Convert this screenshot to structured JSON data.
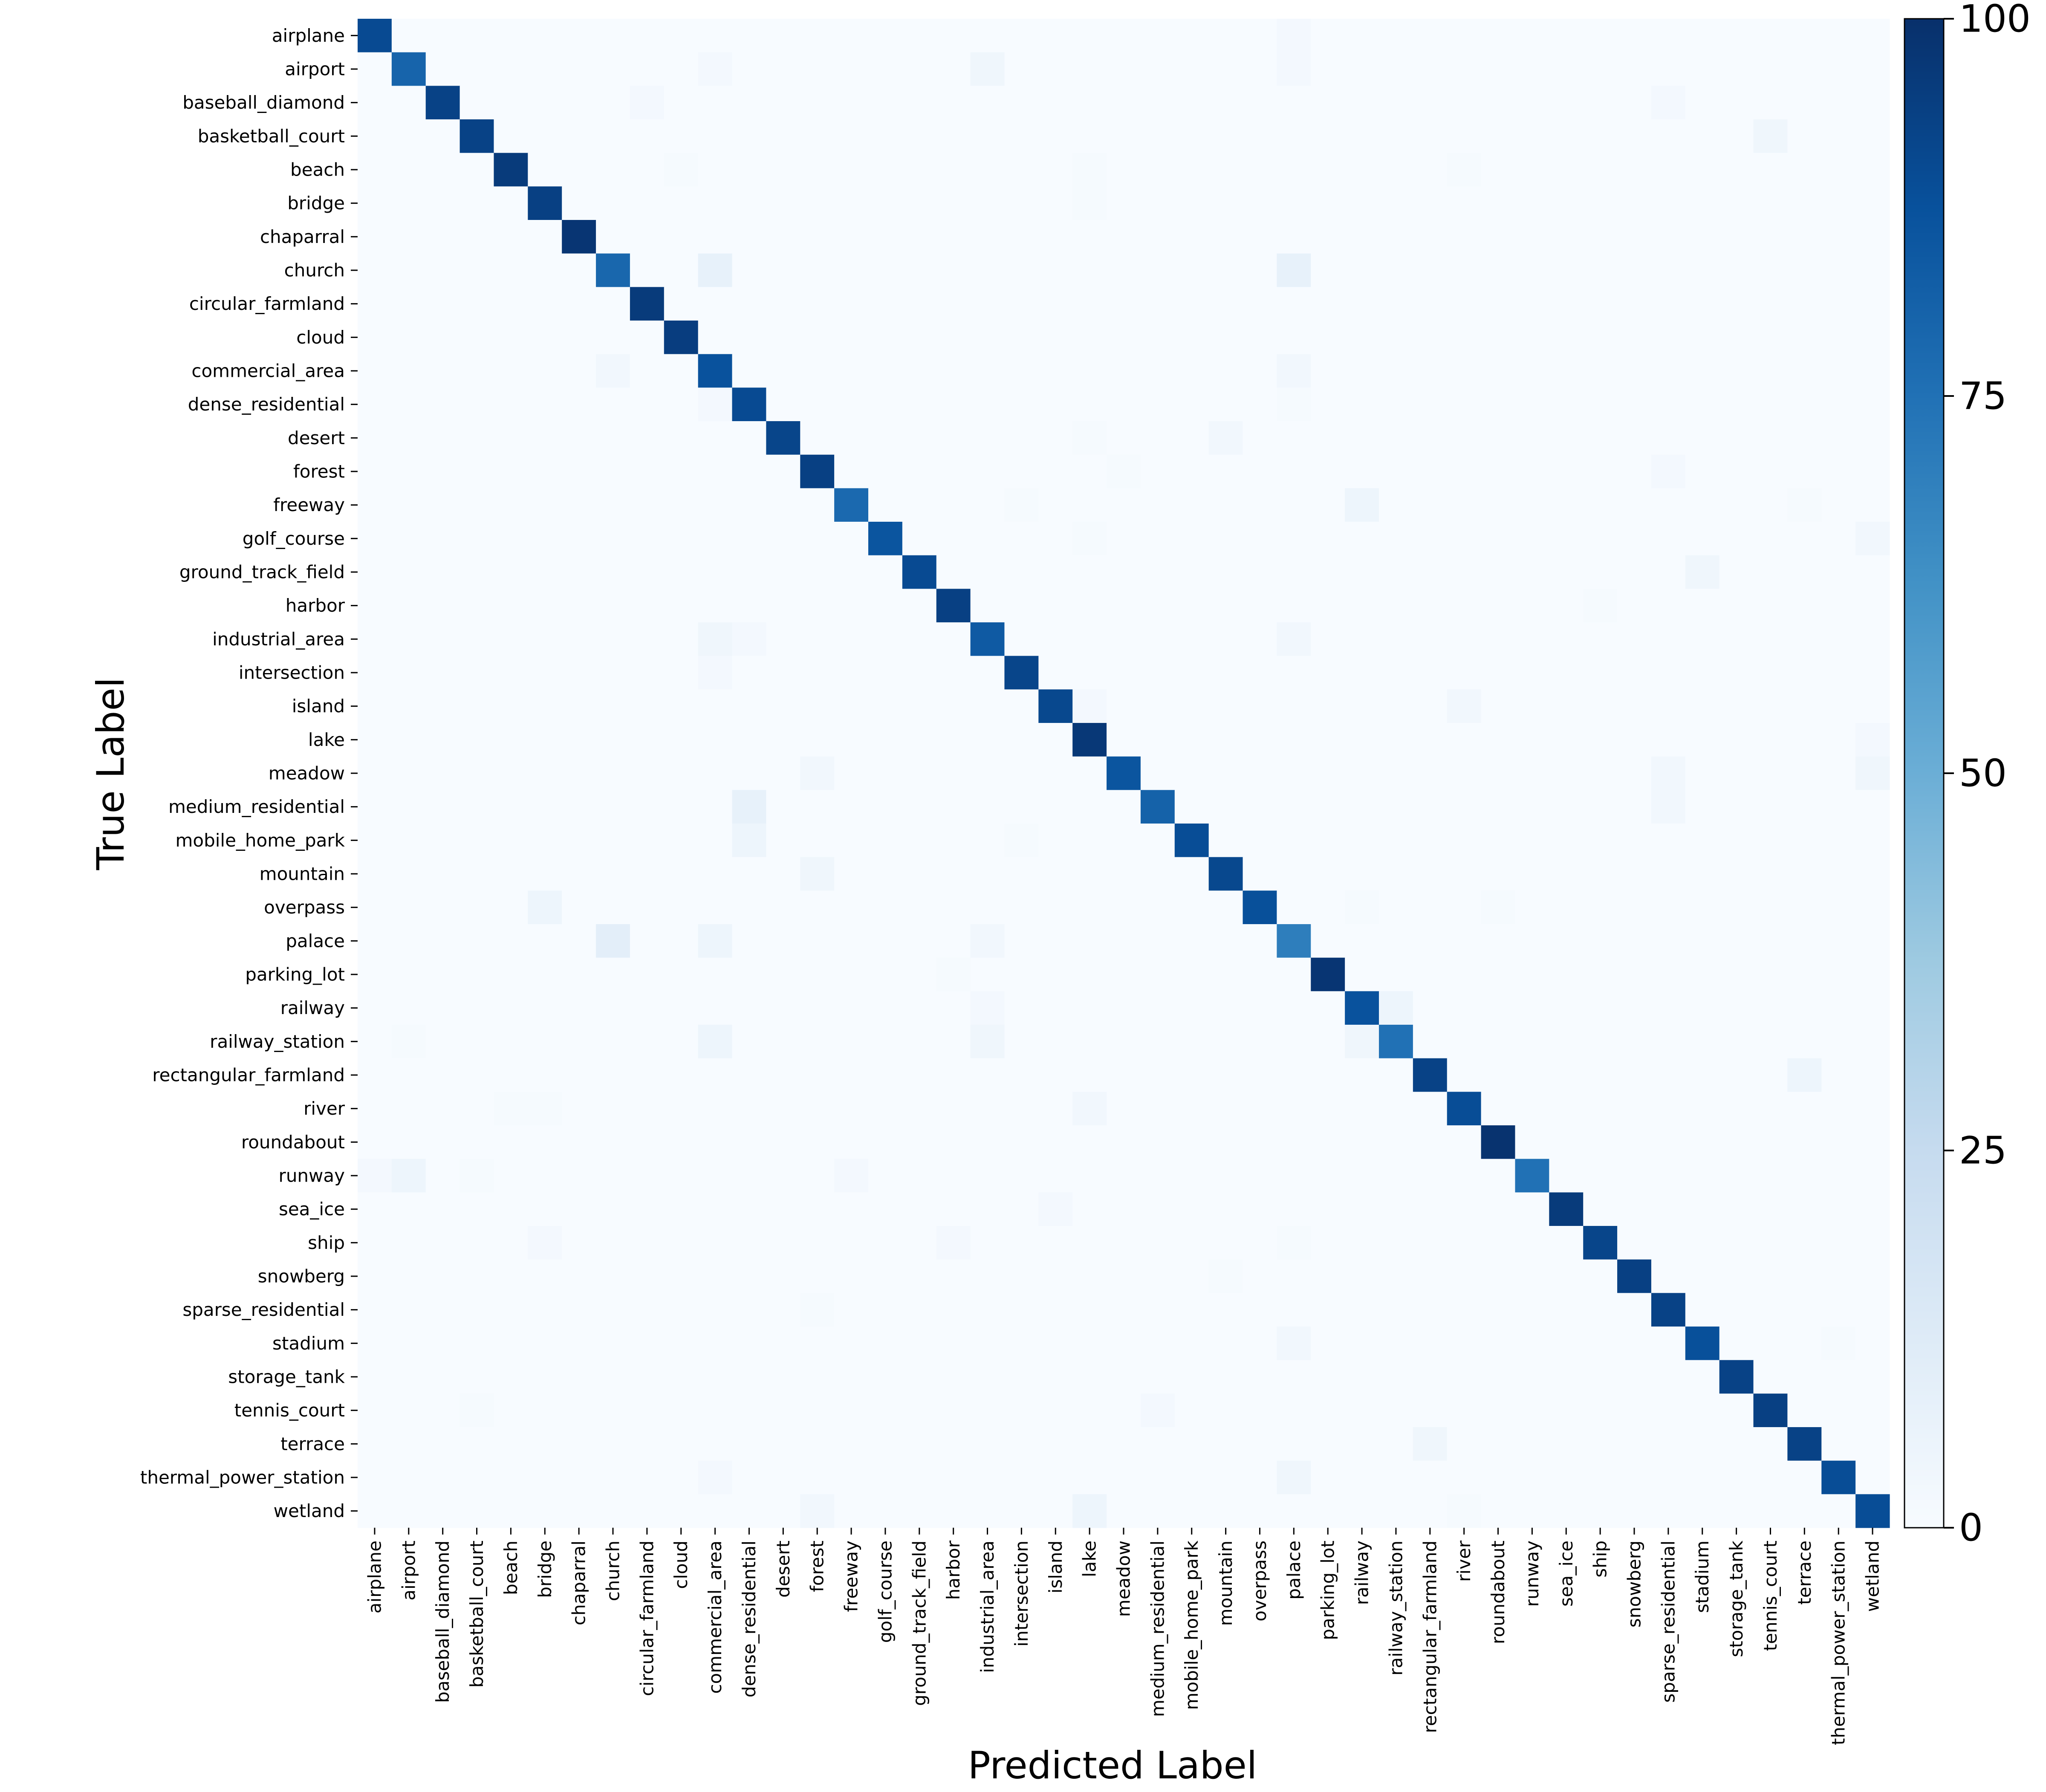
{
  "chart_data": {
    "type": "heatmap",
    "title": "",
    "xlabel": "Predicted Label",
    "ylabel": "True Label",
    "classes": [
      "airplane",
      "airport",
      "baseball_diamond",
      "basketball_court",
      "beach",
      "bridge",
      "chaparral",
      "church",
      "circular_farmland",
      "cloud",
      "commercial_area",
      "dense_residential",
      "desert",
      "forest",
      "freeway",
      "golf_course",
      "ground_track_field",
      "harbor",
      "industrial_area",
      "intersection",
      "island",
      "lake",
      "meadow",
      "medium_residential",
      "mobile_home_park",
      "mountain",
      "overpass",
      "palace",
      "parking_lot",
      "railway",
      "railway_station",
      "rectangular_farmland",
      "river",
      "roundabout",
      "runway",
      "sea_ice",
      "ship",
      "snowberg",
      "sparse_residential",
      "stadium",
      "storage_tank",
      "tennis_court",
      "terrace",
      "thermal_power_station",
      "wetland"
    ],
    "diagonal": [
      90,
      80,
      93,
      93,
      96,
      94,
      98,
      79,
      96,
      95,
      87,
      90,
      92,
      94,
      78,
      86,
      90,
      94,
      84,
      92,
      91,
      97,
      86,
      81,
      89,
      91,
      88,
      70,
      98,
      87,
      75,
      93,
      89,
      99,
      75,
      96,
      92,
      94,
      93,
      88,
      93,
      94,
      93,
      89,
      89
    ],
    "off_diagonal": [
      {
        "row": "airplane",
        "col": "palace",
        "value": 2
      },
      {
        "row": "airport",
        "col": "commercial_area",
        "value": 2
      },
      {
        "row": "airport",
        "col": "industrial_area",
        "value": 4
      },
      {
        "row": "airport",
        "col": "palace",
        "value": 2
      },
      {
        "row": "baseball_diamond",
        "col": "circular_farmland",
        "value": 2
      },
      {
        "row": "baseball_diamond",
        "col": "sparse_residential",
        "value": 2
      },
      {
        "row": "basketball_court",
        "col": "tennis_court",
        "value": 4
      },
      {
        "row": "beach",
        "col": "cloud",
        "value": 1
      },
      {
        "row": "beach",
        "col": "lake",
        "value": 1
      },
      {
        "row": "beach",
        "col": "river",
        "value": 1
      },
      {
        "row": "bridge",
        "col": "lake",
        "value": 1
      },
      {
        "row": "church",
        "col": "commercial_area",
        "value": 8
      },
      {
        "row": "church",
        "col": "palace",
        "value": 8
      },
      {
        "row": "commercial_area",
        "col": "church",
        "value": 3
      },
      {
        "row": "commercial_area",
        "col": "palace",
        "value": 3
      },
      {
        "row": "dense_residential",
        "col": "commercial_area",
        "value": 2
      },
      {
        "row": "dense_residential",
        "col": "palace",
        "value": 1
      },
      {
        "row": "desert",
        "col": "mountain",
        "value": 3
      },
      {
        "row": "desert",
        "col": "lake",
        "value": 1
      },
      {
        "row": "forest",
        "col": "meadow",
        "value": 1
      },
      {
        "row": "forest",
        "col": "sparse_residential",
        "value": 2
      },
      {
        "row": "freeway",
        "col": "railway",
        "value": 5
      },
      {
        "row": "freeway",
        "col": "intersection",
        "value": 1
      },
      {
        "row": "freeway",
        "col": "terrace",
        "value": 1
      },
      {
        "row": "golf_course",
        "col": "wetland",
        "value": 3
      },
      {
        "row": "golf_course",
        "col": "lake",
        "value": 1
      },
      {
        "row": "ground_track_field",
        "col": "stadium",
        "value": 4
      },
      {
        "row": "harbor",
        "col": "ship",
        "value": 1
      },
      {
        "row": "industrial_area",
        "col": "commercial_area",
        "value": 4
      },
      {
        "row": "industrial_area",
        "col": "dense_residential",
        "value": 2
      },
      {
        "row": "industrial_area",
        "col": "palace",
        "value": 3
      },
      {
        "row": "intersection",
        "col": "commercial_area",
        "value": 2
      },
      {
        "row": "island",
        "col": "river",
        "value": 3
      },
      {
        "row": "island",
        "col": "lake",
        "value": 2
      },
      {
        "row": "lake",
        "col": "wetland",
        "value": 2
      },
      {
        "row": "meadow",
        "col": "forest",
        "value": 3
      },
      {
        "row": "meadow",
        "col": "sparse_residential",
        "value": 3
      },
      {
        "row": "meadow",
        "col": "wetland",
        "value": 4
      },
      {
        "row": "medium_residential",
        "col": "dense_residential",
        "value": 8
      },
      {
        "row": "medium_residential",
        "col": "sparse_residential",
        "value": 3
      },
      {
        "row": "mobile_home_park",
        "col": "dense_residential",
        "value": 5
      },
      {
        "row": "mobile_home_park",
        "col": "intersection",
        "value": 1
      },
      {
        "row": "mountain",
        "col": "forest",
        "value": 4
      },
      {
        "row": "overpass",
        "col": "bridge",
        "value": 5
      },
      {
        "row": "overpass",
        "col": "railway",
        "value": 1
      },
      {
        "row": "overpass",
        "col": "roundabout",
        "value": 1
      },
      {
        "row": "palace",
        "col": "church",
        "value": 10
      },
      {
        "row": "palace",
        "col": "commercial_area",
        "value": 5
      },
      {
        "row": "palace",
        "col": "industrial_area",
        "value": 3
      },
      {
        "row": "parking_lot",
        "col": "harbor",
        "value": 1
      },
      {
        "row": "railway",
        "col": "railway_station",
        "value": 5
      },
      {
        "row": "railway",
        "col": "industrial_area",
        "value": 2
      },
      {
        "row": "railway_station",
        "col": "commercial_area",
        "value": 5
      },
      {
        "row": "railway_station",
        "col": "industrial_area",
        "value": 4
      },
      {
        "row": "railway_station",
        "col": "railway",
        "value": 4
      },
      {
        "row": "railway_station",
        "col": "airport",
        "value": 1
      },
      {
        "row": "rectangular_farmland",
        "col": "terrace",
        "value": 5
      },
      {
        "row": "river",
        "col": "lake",
        "value": 3
      },
      {
        "row": "river",
        "col": "bridge",
        "value": 1
      },
      {
        "row": "river",
        "col": "beach",
        "value": 1
      },
      {
        "row": "runway",
        "col": "airport",
        "value": 5
      },
      {
        "row": "runway",
        "col": "airplane",
        "value": 2
      },
      {
        "row": "runway",
        "col": "freeway",
        "value": 2
      },
      {
        "row": "runway",
        "col": "basketball_court",
        "value": 1
      },
      {
        "row": "sea_ice",
        "col": "island",
        "value": 2
      },
      {
        "row": "ship",
        "col": "bridge",
        "value": 2
      },
      {
        "row": "ship",
        "col": "harbor",
        "value": 2
      },
      {
        "row": "ship",
        "col": "palace",
        "value": 1
      },
      {
        "row": "snowberg",
        "col": "mountain",
        "value": 1
      },
      {
        "row": "sparse_residential",
        "col": "forest",
        "value": 1
      },
      {
        "row": "stadium",
        "col": "palace",
        "value": 3
      },
      {
        "row": "stadium",
        "col": "thermal_power_station",
        "value": 1
      },
      {
        "row": "tennis_court",
        "col": "medium_residential",
        "value": 2
      },
      {
        "row": "tennis_court",
        "col": "basketball_court",
        "value": 1
      },
      {
        "row": "terrace",
        "col": "rectangular_farmland",
        "value": 4
      },
      {
        "row": "thermal_power_station",
        "col": "palace",
        "value": 4
      },
      {
        "row": "thermal_power_station",
        "col": "commercial_area",
        "value": 2
      },
      {
        "row": "wetland",
        "col": "lake",
        "value": 5
      },
      {
        "row": "wetland",
        "col": "forest",
        "value": 3
      },
      {
        "row": "wetland",
        "col": "river",
        "value": 1
      }
    ],
    "colorbar": {
      "min": 0,
      "max": 100,
      "ticks": [
        "0",
        "25",
        "50",
        "75",
        "100"
      ],
      "colormap": [
        "#f7fbff",
        "#deebf7",
        "#c6dbef",
        "#9ecae1",
        "#6baed6",
        "#4292c6",
        "#2171b5",
        "#08519c",
        "#08306b"
      ]
    },
    "grid": false
  }
}
